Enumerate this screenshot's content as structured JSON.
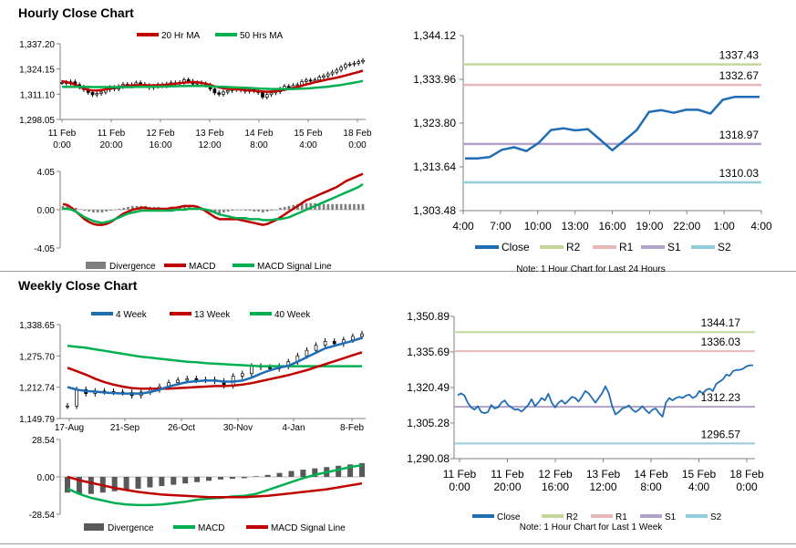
{
  "sections": {
    "hourly_title": "Hourly Close Chart",
    "weekly_title": "Weekly Close Chart"
  },
  "colors": {
    "ma_short": "#c00000",
    "ma_long": "#00b050",
    "close": "#1f6db5",
    "r2": "#c4d79b",
    "r1": "#e6b8b7",
    "s1": "#b1a0c7",
    "s2": "#92cddc",
    "bar": "#595959",
    "candle": "#000000"
  },
  "chart_data": [
    {
      "id": "hourly_price",
      "type": "line",
      "title": "Hourly Close Chart",
      "y_ticks": [
        "1,337.20",
        "1,324.15",
        "1,311.10",
        "1,298.05"
      ],
      "ylim": [
        1298.05,
        1337.2
      ],
      "x_ticks": [
        [
          "11 Feb",
          "0:00"
        ],
        [
          "11 Feb",
          "20:00"
        ],
        [
          "12 Feb",
          "16:00"
        ],
        [
          "13 Feb",
          "12:00"
        ],
        [
          "14 Feb",
          "8:00"
        ],
        [
          "15 Feb",
          "4:00"
        ],
        [
          "18 Feb",
          "0:00"
        ]
      ],
      "legend": [
        "20 Hr MA",
        "50 Hrs MA"
      ],
      "series": [
        {
          "name": "Close",
          "values": [
            1317.2,
            1316.8,
            1317.5,
            1316.0,
            1314.8,
            1313.5,
            1312.0,
            1310.8,
            1311.5,
            1312.2,
            1313.5,
            1314.6,
            1313.8,
            1315.0,
            1316.2,
            1315.4,
            1316.0,
            1317.0,
            1316.2,
            1315.6,
            1314.5,
            1315.2,
            1316.0,
            1315.4,
            1316.4,
            1317.0,
            1316.6,
            1317.2,
            1318.6,
            1317.8,
            1316.4,
            1317.0,
            1316.5,
            1315.8,
            1313.8,
            1311.8,
            1311.1,
            1312.2,
            1313.0,
            1313.5,
            1313.9,
            1313.2,
            1312.6,
            1313.6,
            1313.0,
            1312.0,
            1309.6,
            1310.9,
            1311.8,
            1312.4,
            1313.8,
            1315.2,
            1314.5,
            1315.6,
            1316.0,
            1317.6,
            1318.4,
            1317.9,
            1318.5,
            1319.9,
            1320.6,
            1321.6,
            1322.5,
            1323.6,
            1325.0,
            1326.4,
            1326.6,
            1327.1,
            1327.9,
            1328.6
          ]
        },
        {
          "name": "20 Hr MA",
          "values": [
            1317.8,
            1317.4,
            1316.8,
            1316.0,
            1315.0,
            1314.0,
            1313.4,
            1313.0,
            1313.0,
            1313.2,
            1313.6,
            1314.0,
            1314.4,
            1314.8,
            1315.2,
            1315.5,
            1315.7,
            1315.8,
            1315.8,
            1315.8,
            1315.7,
            1315.7,
            1315.8,
            1315.9,
            1316.1,
            1316.3,
            1316.5,
            1316.8,
            1317.1,
            1317.3,
            1317.4,
            1317.3,
            1317.0,
            1316.5,
            1315.9,
            1315.2,
            1314.6,
            1314.2,
            1313.9,
            1313.7,
            1313.6,
            1313.5,
            1313.3,
            1313.1,
            1312.9,
            1312.7,
            1312.5,
            1312.4,
            1312.5,
            1312.7,
            1313.0,
            1313.4,
            1313.9,
            1314.4,
            1314.9,
            1315.5,
            1316.1,
            1316.7,
            1317.3,
            1317.8,
            1318.3,
            1318.8,
            1319.2,
            1319.7,
            1320.2,
            1320.8,
            1321.4,
            1322.0,
            1322.6,
            1323.3
          ]
        },
        {
          "name": "50 Hrs MA",
          "values": [
            1314.9,
            1314.9,
            1314.9,
            1314.9,
            1314.9,
            1314.9,
            1314.9,
            1314.8,
            1314.8,
            1314.8,
            1314.8,
            1314.8,
            1314.8,
            1314.8,
            1314.8,
            1314.8,
            1314.8,
            1314.9,
            1314.9,
            1314.9,
            1314.9,
            1315.0,
            1315.0,
            1315.1,
            1315.1,
            1315.2,
            1315.2,
            1315.3,
            1315.3,
            1315.4,
            1315.4,
            1315.4,
            1315.4,
            1315.3,
            1315.2,
            1315.1,
            1315.0,
            1314.9,
            1314.8,
            1314.7,
            1314.6,
            1314.5,
            1314.4,
            1314.3,
            1314.2,
            1314.1,
            1314.0,
            1313.9,
            1313.8,
            1313.8,
            1313.8,
            1313.8,
            1313.8,
            1313.8,
            1313.9,
            1314.0,
            1314.1,
            1314.2,
            1314.4,
            1314.6,
            1314.8,
            1315.0,
            1315.3,
            1315.6,
            1315.9,
            1316.3,
            1316.7,
            1317.1,
            1317.5,
            1318.0
          ]
        }
      ]
    },
    {
      "id": "hourly_macd",
      "type": "bar",
      "y_ticks": [
        "4.05",
        "0.00",
        "-4.05"
      ],
      "ylim": [
        -4.05,
        4.05
      ],
      "legend": [
        "Divergence",
        "MACD",
        "MACD Signal Line"
      ],
      "series": [
        {
          "name": "Divergence",
          "values": [
            0.4,
            0.4,
            0.3,
            0.2,
            0.05,
            -0.1,
            -0.2,
            -0.3,
            -0.3,
            -0.3,
            -0.2,
            -0.1,
            0.0,
            0.1,
            0.2,
            0.3,
            0.4,
            0.4,
            0.4,
            0.4,
            0.3,
            0.3,
            0.3,
            0.2,
            0.2,
            0.2,
            0.2,
            0.3,
            0.3,
            0.3,
            0.2,
            0.1,
            -0.1,
            -0.2,
            -0.3,
            -0.4,
            -0.4,
            -0.3,
            -0.2,
            -0.1,
            0.0,
            0.0,
            -0.1,
            -0.1,
            -0.2,
            -0.2,
            -0.3,
            -0.2,
            -0.1,
            0.0,
            0.2,
            0.3,
            0.4,
            0.5,
            0.6,
            0.7,
            0.7,
            0.7,
            0.7,
            0.6,
            0.6,
            0.6,
            0.6,
            0.6,
            0.6,
            0.6,
            0.6,
            0.6,
            0.6,
            0.6
          ]
        },
        {
          "name": "MACD",
          "values": [
            0.6,
            0.5,
            0.2,
            -0.2,
            -0.6,
            -1.0,
            -1.3,
            -1.5,
            -1.6,
            -1.6,
            -1.5,
            -1.3,
            -1.0,
            -0.7,
            -0.4,
            -0.2,
            0.0,
            0.1,
            0.2,
            0.2,
            0.1,
            0.1,
            0.1,
            0.1,
            0.1,
            0.2,
            0.2,
            0.3,
            0.4,
            0.4,
            0.4,
            0.3,
            0.1,
            -0.2,
            -0.5,
            -0.8,
            -1.0,
            -1.0,
            -1.0,
            -1.0,
            -1.0,
            -1.1,
            -1.2,
            -1.3,
            -1.4,
            -1.5,
            -1.6,
            -1.5,
            -1.3,
            -1.1,
            -0.8,
            -0.5,
            -0.2,
            0.1,
            0.4,
            0.7,
            1.0,
            1.2,
            1.4,
            1.6,
            1.8,
            2.0,
            2.2,
            2.4,
            2.7,
            3.0,
            3.2,
            3.4,
            3.6,
            3.8
          ]
        },
        {
          "name": "MACD Signal Line",
          "values": [
            0.1,
            0.1,
            0.0,
            -0.2,
            -0.5,
            -0.8,
            -1.0,
            -1.2,
            -1.3,
            -1.4,
            -1.3,
            -1.2,
            -1.0,
            -0.8,
            -0.6,
            -0.4,
            -0.3,
            -0.2,
            -0.1,
            -0.1,
            -0.1,
            -0.1,
            -0.1,
            -0.1,
            -0.1,
            -0.1,
            0.0,
            0.0,
            0.0,
            0.1,
            0.1,
            0.1,
            0.1,
            0.0,
            -0.1,
            -0.3,
            -0.5,
            -0.6,
            -0.7,
            -0.8,
            -0.9,
            -0.9,
            -0.9,
            -1.0,
            -1.0,
            -1.0,
            -1.1,
            -1.1,
            -1.1,
            -1.0,
            -1.0,
            -0.9,
            -0.8,
            -0.6,
            -0.4,
            -0.2,
            0.0,
            0.2,
            0.4,
            0.6,
            0.8,
            1.0,
            1.2,
            1.4,
            1.6,
            1.8,
            2.0,
            2.2,
            2.4,
            2.7
          ]
        }
      ]
    },
    {
      "id": "hourly_24h",
      "type": "line",
      "y_ticks": [
        "1,344.12",
        "1,333.96",
        "1,323.80",
        "1,313.64",
        "1,303.48"
      ],
      "ylim": [
        1303.48,
        1344.12
      ],
      "x_ticks": [
        "4:00",
        "7:00",
        "10:00",
        "13:00",
        "16:00",
        "19:00",
        "22:00",
        "1:00",
        "4:00"
      ],
      "legend": [
        "Close",
        "R2",
        "R1",
        "S1",
        "S2"
      ],
      "note": "Note: 1 Hour Chart for Last 24 Hours",
      "levels": [
        {
          "name": "R2",
          "value": 1337.43,
          "label": "1337.43"
        },
        {
          "name": "R1",
          "value": 1332.67,
          "label": "1332.67"
        },
        {
          "name": "S1",
          "value": 1318.97,
          "label": "1318.97"
        },
        {
          "name": "S2",
          "value": 1310.03,
          "label": "1310.03"
        }
      ],
      "series": [
        {
          "name": "Close",
          "values": [
            1315.6,
            1315.6,
            1315.9,
            1317.6,
            1318.2,
            1317.3,
            1319.2,
            1322.2,
            1322.6,
            1322.1,
            1322.4,
            1320.0,
            1317.5,
            1319.8,
            1322.2,
            1326.4,
            1326.8,
            1326.2,
            1326.9,
            1326.9,
            1326.0,
            1329.2,
            1329.9,
            1329.9,
            1329.9
          ]
        }
      ]
    },
    {
      "id": "weekly_price",
      "type": "line",
      "title": "Weekly Close Chart",
      "y_ticks": [
        "1,338.65",
        "1,275.70",
        "1,212.74",
        "1,149.79"
      ],
      "ylim": [
        1149.79,
        1338.65
      ],
      "x_ticks": [
        "17-Aug",
        "21-Sep",
        "26-Oct",
        "30-Nov",
        "4-Jan",
        "8-Feb"
      ],
      "legend": [
        "4 Week",
        "13 Week",
        "40 Week"
      ],
      "series": [
        {
          "name": "Close",
          "values": [
            1175,
            1208,
            1200,
            1205,
            1204,
            1203,
            1202,
            1196,
            1203,
            1208,
            1214,
            1222,
            1227,
            1230,
            1227,
            1228,
            1225,
            1216,
            1235,
            1240,
            1255,
            1253,
            1250,
            1255,
            1264,
            1276,
            1287,
            1297,
            1305,
            1300,
            1308,
            1315,
            1320
          ]
        },
        {
          "name": "4 Week",
          "values": [
            1213,
            1208,
            1205,
            1204,
            1202,
            1201,
            1200,
            1200,
            1200,
            1203,
            1208,
            1214,
            1219,
            1223,
            1225,
            1226,
            1226,
            1224,
            1224,
            1226,
            1232,
            1240,
            1247,
            1252,
            1256,
            1264,
            1273,
            1282,
            1291,
            1296,
            1301,
            1306,
            1312
          ]
        },
        {
          "name": "13 Week",
          "values": [
            1252,
            1245,
            1238,
            1230,
            1223,
            1218,
            1214,
            1211,
            1210,
            1210,
            1210,
            1210,
            1211,
            1212,
            1213,
            1214,
            1215,
            1215,
            1216,
            1218,
            1221,
            1225,
            1229,
            1233,
            1237,
            1242,
            1247,
            1253,
            1259,
            1265,
            1271,
            1277,
            1283
          ]
        },
        {
          "name": "40 Week",
          "values": [
            1296,
            1294,
            1292,
            1289,
            1286,
            1283,
            1280,
            1277,
            1274,
            1272,
            1270,
            1268,
            1266,
            1264,
            1263,
            1261,
            1260,
            1259,
            1258,
            1257,
            1256,
            1255,
            1255,
            1255,
            1255,
            1255,
            1255,
            1255,
            1255,
            1255,
            1255,
            1255,
            1255
          ]
        }
      ]
    },
    {
      "id": "weekly_macd",
      "type": "bar",
      "y_ticks": [
        "28.54",
        "0.00",
        "-28.54"
      ],
      "ylim": [
        -28.54,
        28.54
      ],
      "legend": [
        "Divergence",
        "MACD",
        "MACD Signal Line"
      ],
      "series": [
        {
          "name": "Divergence",
          "values": [
            -12,
            -13,
            -13,
            -12,
            -11,
            -10,
            -9,
            -8,
            -7,
            -6,
            -5,
            -4,
            -3,
            -2,
            -1.5,
            -1,
            0.5,
            1.5,
            3,
            4.5,
            5.5,
            6.5,
            7.5,
            8.5,
            9.5,
            10.5
          ]
        },
        {
          "name": "MACD",
          "values": [
            -9,
            -13,
            -16,
            -18,
            -20,
            -21,
            -21.5,
            -21.5,
            -21,
            -20,
            -19,
            -17.5,
            -16.5,
            -16,
            -15,
            -14.5,
            -13,
            -10,
            -7,
            -4,
            -1,
            1.5,
            3.5,
            5.5,
            7.5,
            9
          ]
        },
        {
          "name": "MACD Signal Line",
          "values": [
            0,
            -2.5,
            -4.5,
            -6.5,
            -8.5,
            -10,
            -11.5,
            -12.5,
            -13.5,
            -14,
            -14.5,
            -15,
            -15.5,
            -15.5,
            -15.5,
            -15.5,
            -15,
            -14.5,
            -13.5,
            -12.5,
            -11.5,
            -10.5,
            -9.5,
            -8,
            -6.5,
            -5
          ]
        }
      ]
    },
    {
      "id": "weekly_hourly",
      "type": "line",
      "y_ticks": [
        "1,350.89",
        "1,335.69",
        "1,320.49",
        "1,305.28",
        "1,290.08"
      ],
      "ylim": [
        1290.08,
        1350.89
      ],
      "x_ticks": [
        [
          "11 Feb",
          "0:00"
        ],
        [
          "11 Feb",
          "20:00"
        ],
        [
          "12 Feb",
          "16:00"
        ],
        [
          "13 Feb",
          "12:00"
        ],
        [
          "14 Feb",
          "8:00"
        ],
        [
          "15 Feb",
          "4:00"
        ],
        [
          "18 Feb",
          "0:00"
        ]
      ],
      "legend": [
        "Close",
        "R2",
        "R1",
        "S1",
        "S2"
      ],
      "note": "Note: 1 Hour Chart for Last 1 Week",
      "levels": [
        {
          "name": "R2",
          "value": 1344.17,
          "label": "1344.17"
        },
        {
          "name": "R1",
          "value": 1336.03,
          "label": "1336.03"
        },
        {
          "name": "S1",
          "value": 1312.23,
          "label": "1312.23"
        },
        {
          "name": "S2",
          "value": 1296.57,
          "label": "1296.57"
        }
      ],
      "series": [
        {
          "name": "Close",
          "values": [
            1317.2,
            1318.0,
            1317.0,
            1314.0,
            1312.0,
            1311.0,
            1312.5,
            1310.0,
            1309.5,
            1310.0,
            1313.0,
            1311.5,
            1312.0,
            1314.0,
            1315.0,
            1313.0,
            1312.0,
            1311.0,
            1311.2,
            1310.2,
            1311.5,
            1313.0,
            1315.5,
            1312.5,
            1314.0,
            1316.0,
            1315.0,
            1317.8,
            1314.0,
            1312.0,
            1314.0,
            1315.0,
            1313.5,
            1315.0,
            1316.5,
            1316.0,
            1314.5,
            1316.5,
            1319.0,
            1318.0,
            1316.0,
            1314.0,
            1316.0,
            1318.0,
            1321.0,
            1318.0,
            1312.5,
            1309.0,
            1310.0,
            1311.5,
            1312.0,
            1312.8,
            1311.0,
            1310.0,
            1311.0,
            1312.5,
            1310.8,
            1309.5,
            1311.0,
            1311.5,
            1309.5,
            1308.0,
            1314.0,
            1316.0,
            1315.0,
            1316.0,
            1316.5,
            1316.0,
            1317.0,
            1317.5,
            1316.0,
            1316.8,
            1319.0,
            1318.0,
            1319.5,
            1320.0,
            1319.0,
            1322.0,
            1323.0,
            1324.0,
            1326.0,
            1325.5,
            1327.5,
            1328.0,
            1328.0,
            1328.5,
            1329.5,
            1330.0,
            1330.0
          ]
        }
      ]
    }
  ]
}
